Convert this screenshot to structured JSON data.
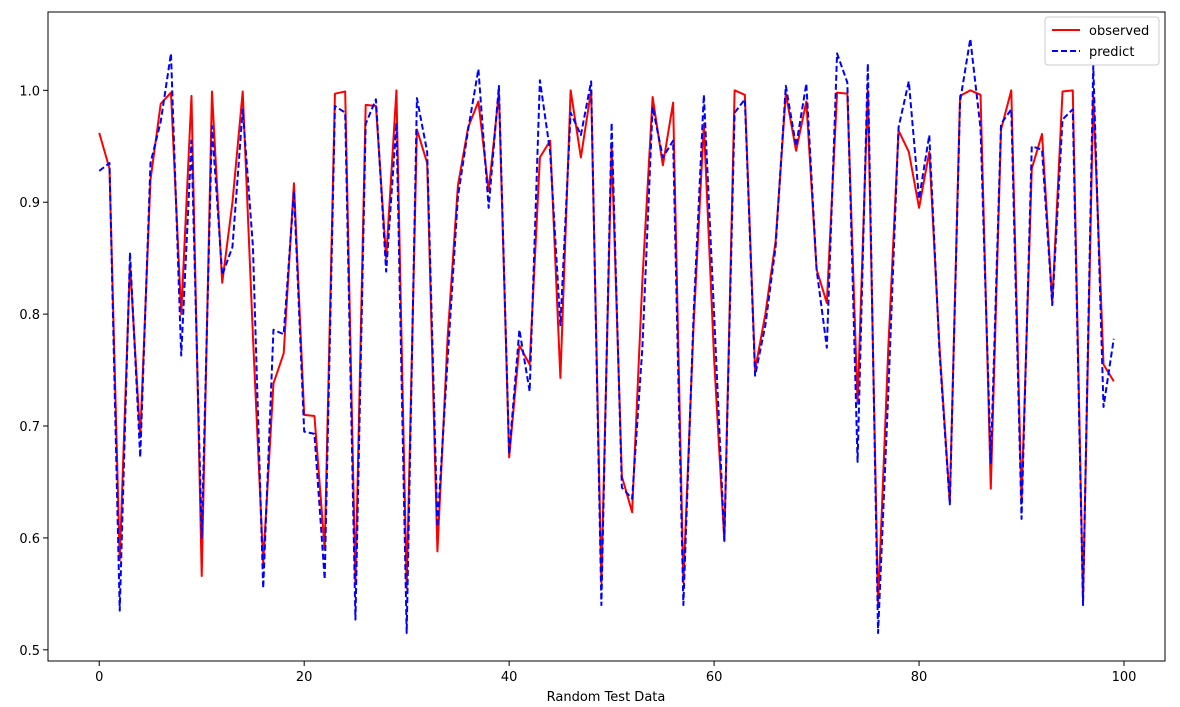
{
  "chart_data": {
    "type": "line",
    "title": "",
    "xlabel": "Random Test Data",
    "ylabel": "",
    "xlim": [
      -5,
      104
    ],
    "ylim": [
      0.49,
      1.07
    ],
    "xticks": [
      0,
      20,
      40,
      60,
      80,
      100
    ],
    "xtick_labels": [
      "0",
      "20",
      "40",
      "60",
      "80",
      "100"
    ],
    "yticks": [
      0.5,
      0.6,
      0.7,
      0.8,
      0.9,
      1.0
    ],
    "ytick_labels": [
      "0.5",
      "0.6",
      "0.7",
      "0.8",
      "0.9",
      "1.0"
    ],
    "grid": false,
    "legend_position": "top-right",
    "x": [
      0,
      1,
      2,
      3,
      4,
      5,
      6,
      7,
      8,
      9,
      10,
      11,
      12,
      13,
      14,
      15,
      16,
      17,
      18,
      19,
      20,
      21,
      22,
      23,
      24,
      25,
      26,
      27,
      28,
      29,
      30,
      31,
      32,
      33,
      34,
      35,
      36,
      37,
      38,
      39,
      40,
      41,
      42,
      43,
      44,
      45,
      46,
      47,
      48,
      49,
      50,
      51,
      52,
      53,
      54,
      55,
      56,
      57,
      58,
      59,
      60,
      61,
      62,
      63,
      64,
      65,
      66,
      67,
      68,
      69,
      70,
      71,
      72,
      73,
      74,
      75,
      76,
      77,
      78,
      79,
      80,
      81,
      82,
      83,
      84,
      85,
      86,
      87,
      88,
      89,
      90,
      91,
      92,
      93,
      94,
      95,
      96,
      97,
      98,
      99
    ],
    "series": [
      {
        "name": "observed",
        "color": "#ff0000",
        "style": "solid",
        "values": [
          0.962,
          0.93,
          0.58,
          0.845,
          0.69,
          0.92,
          0.988,
          0.998,
          0.8,
          0.995,
          0.566,
          0.999,
          0.828,
          0.9,
          0.999,
          0.78,
          0.578,
          0.738,
          0.765,
          0.917,
          0.71,
          0.709,
          0.59,
          0.997,
          0.999,
          0.56,
          0.987,
          0.986,
          0.85,
          1.0,
          0.555,
          0.965,
          0.935,
          0.588,
          0.78,
          0.915,
          0.967,
          0.99,
          0.91,
          0.998,
          0.672,
          0.772,
          0.755,
          0.94,
          0.955,
          0.743,
          1.0,
          0.94,
          1.0,
          0.56,
          0.95,
          0.655,
          0.623,
          0.83,
          0.994,
          0.933,
          0.989,
          0.56,
          0.79,
          0.97,
          0.76,
          0.597,
          1.0,
          0.996,
          0.75,
          0.8,
          0.865,
          0.997,
          0.946,
          0.99,
          0.84,
          0.81,
          0.998,
          0.997,
          0.72,
          1.0,
          0.54,
          0.77,
          0.964,
          0.945,
          0.895,
          0.945,
          0.77,
          0.632,
          0.995,
          1.0,
          0.996,
          0.644,
          0.965,
          1.0,
          0.633,
          0.93,
          0.961,
          0.81,
          0.999,
          1.0,
          0.545,
          0.995,
          0.755,
          0.74
        ]
      },
      {
        "name": "predict",
        "color": "#0000ff",
        "style": "dashed",
        "values": [
          0.928,
          0.935,
          0.535,
          0.855,
          0.672,
          0.935,
          0.972,
          1.033,
          0.763,
          0.955,
          0.6,
          0.968,
          0.835,
          0.86,
          0.983,
          0.86,
          0.555,
          0.786,
          0.782,
          0.91,
          0.695,
          0.693,
          0.563,
          0.986,
          0.98,
          0.527,
          0.97,
          0.992,
          0.838,
          0.971,
          0.515,
          0.993,
          0.945,
          0.61,
          0.76,
          0.905,
          0.965,
          1.019,
          0.895,
          1.004,
          0.675,
          0.786,
          0.731,
          1.009,
          0.945,
          0.79,
          0.98,
          0.96,
          1.008,
          0.54,
          0.971,
          0.645,
          0.635,
          0.77,
          0.985,
          0.94,
          0.955,
          0.54,
          0.8,
          0.996,
          0.8,
          0.598,
          0.98,
          0.992,
          0.745,
          0.79,
          0.86,
          1.004,
          0.95,
          1.006,
          0.84,
          0.77,
          1.033,
          1.007,
          0.668,
          1.024,
          0.515,
          0.73,
          0.967,
          1.008,
          0.903,
          0.96,
          0.765,
          0.63,
          0.99,
          1.046,
          0.966,
          0.667,
          0.97,
          0.983,
          0.617,
          0.95,
          0.947,
          0.808,
          0.974,
          0.983,
          0.54,
          1.022,
          0.717,
          0.778
        ]
      }
    ]
  }
}
